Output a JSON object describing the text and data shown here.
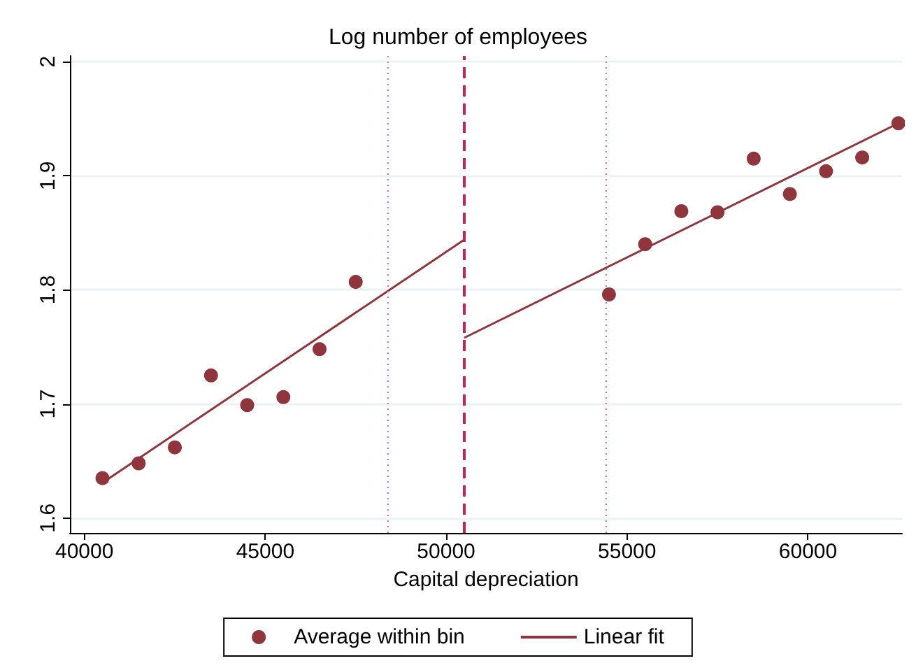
{
  "chart_data": {
    "type": "scatter",
    "title": "Log number of employees",
    "xlabel": "Capital depreciation",
    "xlim": [
      39600,
      62600
    ],
    "xticks": [
      40000,
      45000,
      50000,
      55000,
      60000
    ],
    "ylim": [
      1.587,
      2.005
    ],
    "yticks": [
      1.6,
      1.7,
      1.8,
      1.9,
      2
    ],
    "grid": "y",
    "legend": "bottom",
    "series": [
      {
        "name": "Average within bin",
        "marker": "circle",
        "color": "#90353b",
        "x": [
          40500,
          41500,
          42500,
          43500,
          44500,
          45500,
          46500,
          47500,
          54500,
          55500,
          56500,
          57500,
          58500,
          59500,
          60500,
          61500,
          62500
        ],
        "values": [
          1.635,
          1.648,
          1.662,
          1.725,
          1.699,
          1.706,
          1.748,
          1.807,
          1.796,
          1.84,
          1.869,
          1.868,
          1.915,
          1.884,
          1.904,
          1.916,
          1.946
        ]
      },
      {
        "name": "Linear fit",
        "type": "line",
        "marker": "none",
        "color": "#90353b",
        "x": [
          40500,
          50500
        ],
        "values": [
          1.631,
          1.844
        ]
      },
      {
        "type": "line",
        "marker": "none",
        "color": "#90353b",
        "x": [
          50500,
          62500
        ],
        "values": [
          1.758,
          1.946
        ]
      }
    ],
    "ref_lines": [
      {
        "axis": "x",
        "value": 50500,
        "color": "#c0255a",
        "line_style": "dashed"
      },
      {
        "axis": "x",
        "value": 48400,
        "color": "#e0708a",
        "line_style": "dotted"
      },
      {
        "axis": "x",
        "value": 54400,
        "color": "#e0708a",
        "line_style": "dotted"
      }
    ]
  }
}
